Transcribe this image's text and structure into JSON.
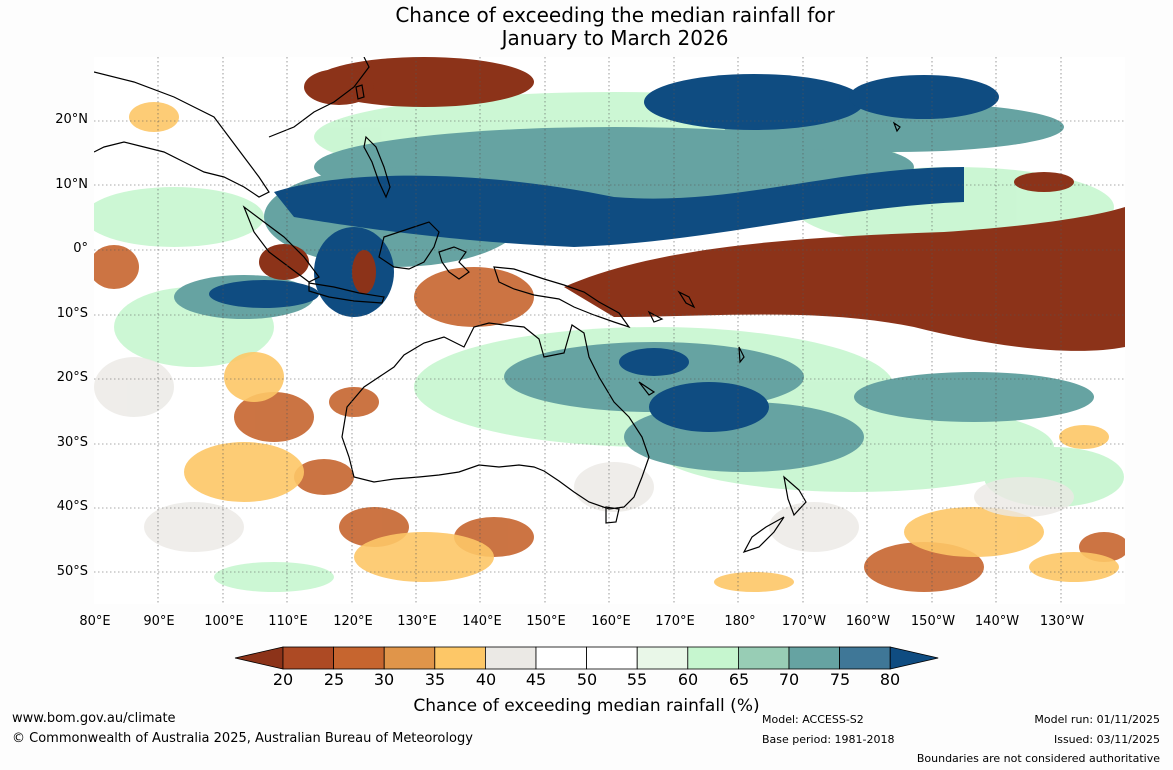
{
  "title": {
    "line1": "Chance of exceeding the median rainfall for",
    "line2": "January to March 2026"
  },
  "map": {
    "lat_labels": [
      "20°N",
      "10°N",
      "0°",
      "10°S",
      "20°S",
      "30°S",
      "40°S",
      "50°S"
    ],
    "lon_labels": [
      "80°E",
      "90°E",
      "100°E",
      "110°E",
      "120°E",
      "130°E",
      "140°E",
      "150°E",
      "160°E",
      "170°E",
      "180°",
      "170°W",
      "160°W",
      "150°W",
      "140°W",
      "130°W"
    ],
    "coastline_color": "#000000",
    "gridline_style": "dotted"
  },
  "colorbar": {
    "ticks": [
      "20",
      "25",
      "30",
      "35",
      "40",
      "45",
      "50",
      "55",
      "60",
      "65",
      "70",
      "75",
      "80"
    ],
    "colors": [
      "#8c3319",
      "#ad4a24",
      "#c6652f",
      "#e0954a",
      "#fdc767",
      "#ebe9e5",
      "#ffffff",
      "#ffffff",
      "#e9f7e8",
      "#c6f6cf",
      "#98cdb5",
      "#66a3a2",
      "#3f7797",
      "#0f4c81"
    ],
    "label": "Chance of exceeding median rainfall (%)"
  },
  "footer": {
    "website": "www.bom.gov.au/climate",
    "copyright": "© Commonwealth of Australia 2025, Australian Bureau of Meteorology",
    "model": "Model: ACCESS-S2",
    "base_period": "Base period: 1981-2018",
    "model_run": "Model run: 01/11/2025",
    "issued": "Issued: 03/11/2025",
    "disclaimer": "Boundaries are not considered authoritative"
  }
}
